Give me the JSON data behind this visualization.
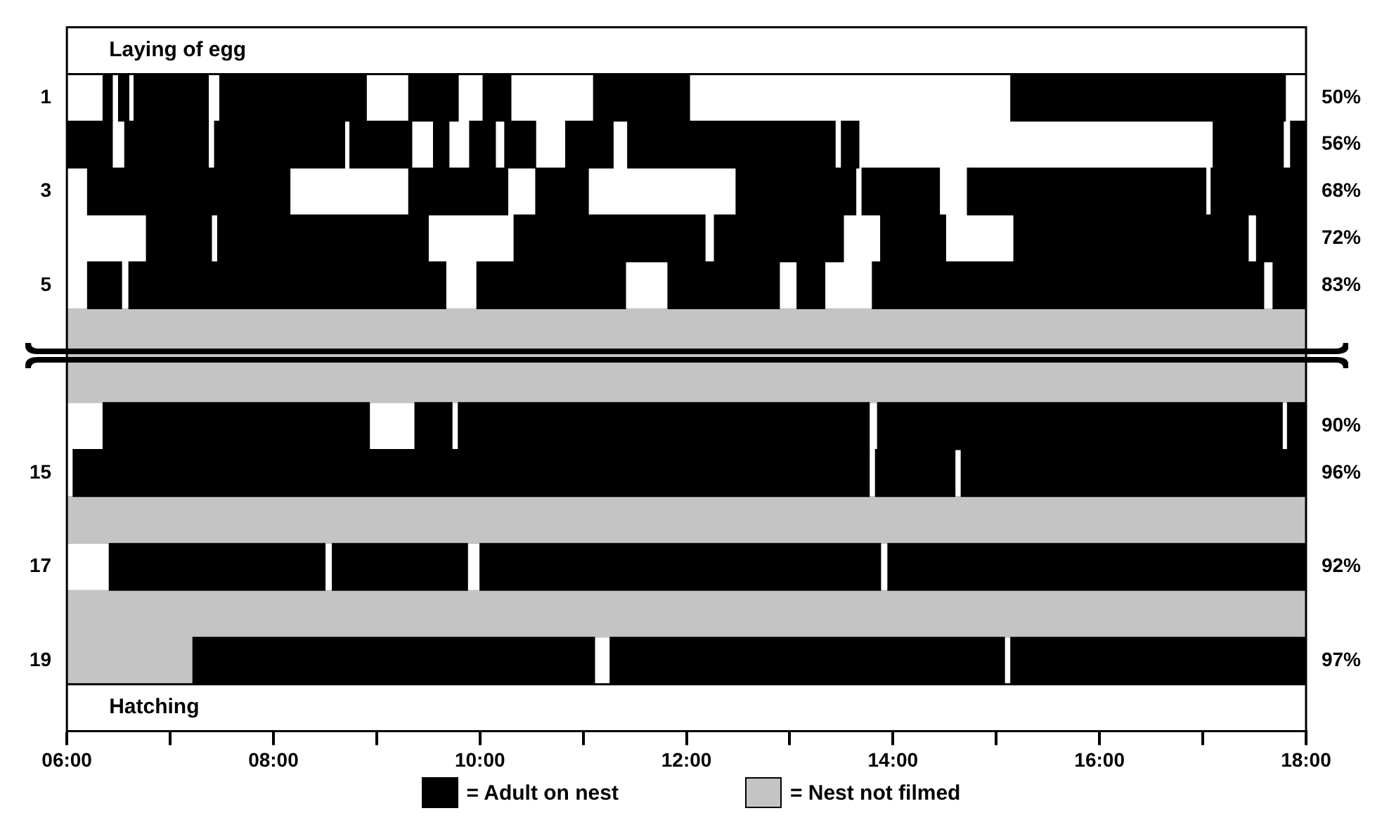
{
  "chart_data": {
    "type": "bar",
    "orientation": "horizontal",
    "legend": "bottom",
    "categories": [
      null,
      "1",
      null,
      "3",
      null,
      "5",
      null,
      null,
      null,
      "15",
      null,
      "17",
      null,
      "19",
      null
    ],
    "y2_categories": [
      null,
      "50%",
      "56%",
      "68%",
      "72%",
      "83%",
      null,
      null,
      "90%",
      "96%",
      null,
      "92%",
      null,
      "97%",
      null
    ],
    "xlim": [
      6,
      18
    ],
    "xticks": [
      {
        "value": 6,
        "label": "06:00"
      },
      {
        "value": 7,
        "label": null
      },
      {
        "value": 8,
        "label": "08:00"
      },
      {
        "value": 9,
        "label": null
      },
      {
        "value": 10,
        "label": "10:00"
      },
      {
        "value": 11,
        "label": null
      },
      {
        "value": 12,
        "label": "12:00"
      },
      {
        "value": 13,
        "label": null
      },
      {
        "value": 14,
        "label": "14:00"
      },
      {
        "value": 15,
        "label": null
      },
      {
        "value": 16,
        "label": "16:00"
      },
      {
        "value": 17,
        "label": null
      },
      {
        "value": 18,
        "label": "18:00"
      }
    ],
    "annotations": [
      "Laying of egg",
      "Hatching"
    ],
    "series": [
      {
        "name": "= Adult on nest",
        "color": "#000000",
        "base": [
          null,
          6.35,
          6.0,
          6.2,
          6.77,
          6.2,
          null,
          null,
          6.35,
          6.06,
          null,
          6.41,
          null,
          7.22,
          null
        ],
        "values": [
          null,
          0.09,
          0.44,
          1.96,
          0.63,
          0.33,
          null,
          null,
          2.58,
          7.71,
          null,
          2.09,
          null,
          3.89,
          null
        ]
      },
      {
        "color": "#000000",
        "base": [
          null,
          6.5,
          6.56,
          9.31,
          7.46,
          6.6,
          null,
          null,
          9.37,
          13.83,
          null,
          8.57,
          null,
          11.26,
          null
        ],
        "values": [
          null,
          0.1,
          0.81,
          0.96,
          2.04,
          3.07,
          null,
          null,
          0.36,
          0.77,
          null,
          1.31,
          null,
          3.82,
          null
        ]
      },
      {
        "color": "#000000",
        "base": [
          null,
          6.65,
          7.43,
          10.54,
          10.33,
          9.97,
          null,
          null,
          9.79,
          14.66,
          null,
          10.0,
          null,
          15.14,
          null
        ],
        "values": [
          null,
          0.72,
          1.26,
          0.51,
          1.85,
          1.44,
          null,
          null,
          3.98,
          3.34,
          null,
          3.88,
          null,
          2.86,
          null
        ]
      },
      {
        "color": "#000000",
        "base": [
          null,
          7.48,
          8.74,
          12.48,
          12.27,
          11.82,
          null,
          null,
          13.85,
          null,
          null,
          13.95,
          null,
          null,
          null
        ],
        "values": [
          null,
          1.42,
          0.6,
          1.16,
          1.25,
          1.08,
          null,
          null,
          3.92,
          null,
          null,
          4.05,
          null,
          null,
          null
        ]
      },
      {
        "color": "#000000",
        "base": [
          null,
          9.31,
          9.55,
          13.7,
          13.88,
          13.07,
          null,
          null,
          17.82,
          null,
          null,
          null,
          null,
          null,
          null
        ],
        "values": [
          null,
          0.48,
          0.15,
          0.75,
          0.63,
          0.27,
          null,
          null,
          0.18,
          null,
          null,
          null,
          null,
          null,
          null
        ]
      },
      {
        "color": "#000000",
        "base": [
          null,
          10.03,
          9.9,
          14.72,
          15.17,
          13.8,
          null,
          null,
          null,
          null,
          null,
          null,
          null,
          null,
          null
        ],
        "values": [
          null,
          0.27,
          0.25,
          2.31,
          2.27,
          3.79,
          null,
          null,
          null,
          null,
          null,
          null,
          null,
          null,
          null
        ]
      },
      {
        "color": "#000000",
        "base": [
          null,
          11.1,
          10.24,
          17.08,
          17.52,
          17.68,
          null,
          null,
          null,
          null,
          null,
          null,
          null,
          null,
          null
        ],
        "values": [
          null,
          0.93,
          0.3,
          0.92,
          0.48,
          0.32,
          null,
          null,
          null,
          null,
          null,
          null,
          null,
          null,
          null
        ]
      },
      {
        "color": "#000000",
        "base": [
          null,
          15.14,
          10.83,
          null,
          null,
          null,
          null,
          null,
          null,
          null,
          null,
          null,
          null,
          null,
          null
        ],
        "values": [
          null,
          2.66,
          0.46,
          null,
          null,
          null,
          null,
          null,
          null,
          null,
          null,
          null,
          null,
          null,
          null
        ]
      },
      {
        "color": "#000000",
        "base": [
          null,
          null,
          11.43,
          null,
          null,
          null,
          null,
          null,
          null,
          null,
          null,
          null,
          null,
          null,
          null
        ],
        "values": [
          null,
          null,
          2.01,
          null,
          null,
          null,
          null,
          null,
          null,
          null,
          null,
          null,
          null,
          null,
          null
        ]
      },
      {
        "color": "#000000",
        "base": [
          null,
          null,
          13.5,
          null,
          null,
          null,
          null,
          null,
          null,
          null,
          null,
          null,
          null,
          null,
          null
        ],
        "values": [
          null,
          null,
          0.17,
          null,
          null,
          null,
          null,
          null,
          null,
          null,
          null,
          null,
          null,
          null,
          null
        ]
      },
      {
        "color": "#000000",
        "base": [
          null,
          null,
          17.1,
          null,
          null,
          null,
          null,
          null,
          null,
          null,
          null,
          null,
          null,
          null,
          null
        ],
        "values": [
          null,
          null,
          0.68,
          null,
          null,
          null,
          null,
          null,
          null,
          null,
          null,
          null,
          null,
          null,
          null
        ]
      },
      {
        "color": "#000000",
        "base": [
          null,
          null,
          17.85,
          null,
          null,
          null,
          null,
          null,
          null,
          null,
          null,
          null,
          null,
          null,
          null
        ],
        "values": [
          null,
          null,
          0.15,
          null,
          null,
          null,
          null,
          null,
          null,
          null,
          null,
          null,
          null,
          null,
          null
        ]
      },
      {
        "name": "= Nest not filmed",
        "color": "#c4c4c4",
        "base": [
          null,
          null,
          null,
          null,
          null,
          null,
          6,
          6,
          null,
          null,
          6,
          null,
          6,
          6,
          null
        ],
        "values": [
          null,
          null,
          null,
          null,
          null,
          null,
          12,
          12,
          null,
          null,
          12,
          null,
          12,
          1.22,
          null
        ]
      }
    ]
  }
}
